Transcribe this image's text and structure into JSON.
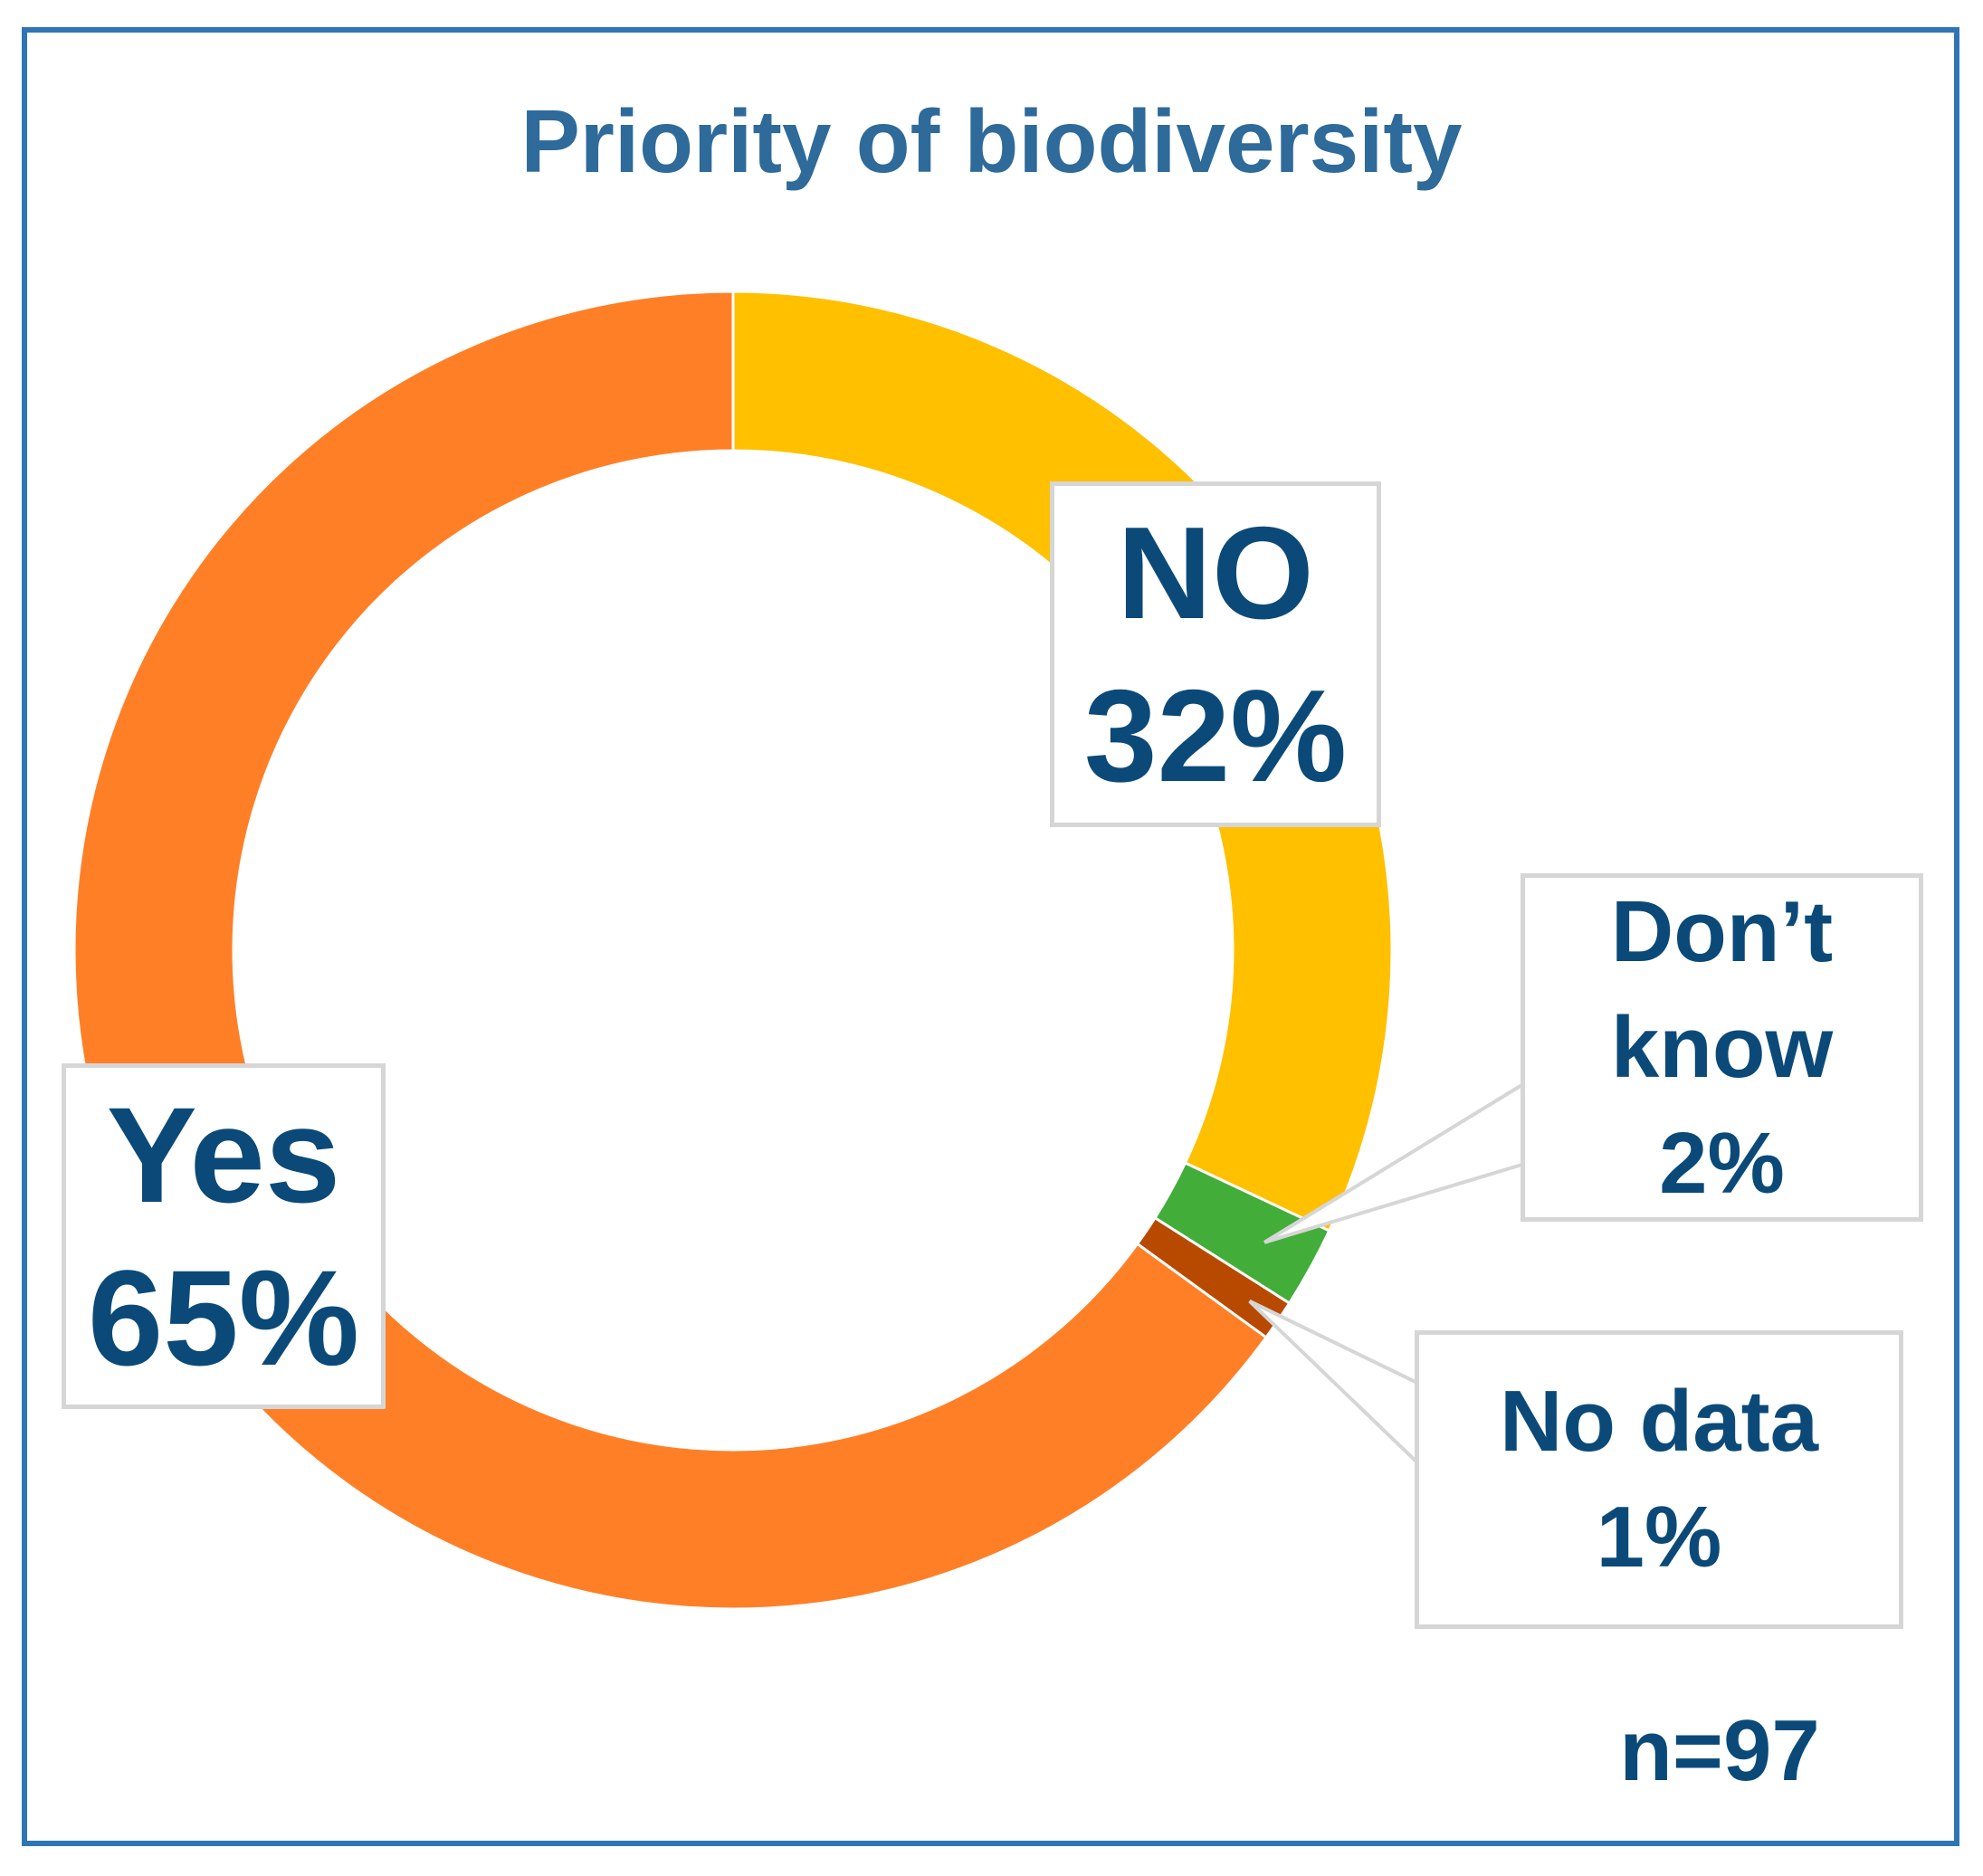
{
  "chart_data": {
    "type": "pie",
    "variant": "donut",
    "title": "Priority of biodiversity",
    "sample_size_label": "n=97",
    "slices": [
      {
        "name": "NO",
        "label_lines": [
          "NO",
          "32%"
        ],
        "value": 32,
        "color": "#ffc000"
      },
      {
        "name": "Don’t know",
        "label_lines": [
          "Don’t",
          "know",
          "2%"
        ],
        "value": 2,
        "color": "#43ad3a"
      },
      {
        "name": "No data",
        "label_lines": [
          "No data",
          "1%"
        ],
        "value": 1,
        "color": "#b84a00"
      },
      {
        "name": "Yes",
        "label_lines": [
          "Yes",
          "65%"
        ],
        "value": 65,
        "color": "#ff7f27"
      }
    ],
    "start_angle_deg": 0,
    "direction": "clockwise"
  }
}
